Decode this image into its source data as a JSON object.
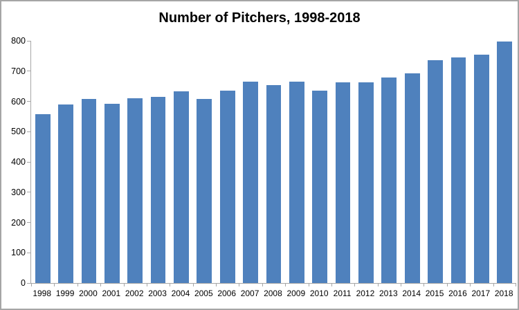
{
  "chart_data": {
    "type": "bar",
    "title": "Number of Pitchers, 1998-2018",
    "categories": [
      "1998",
      "1999",
      "2000",
      "2001",
      "2002",
      "2003",
      "2004",
      "2005",
      "2006",
      "2007",
      "2008",
      "2009",
      "2010",
      "2011",
      "2012",
      "2013",
      "2014",
      "2015",
      "2016",
      "2017",
      "2018"
    ],
    "values": [
      558,
      590,
      608,
      593,
      611,
      614,
      633,
      607,
      635,
      666,
      653,
      665,
      635,
      662,
      662,
      678,
      692,
      735,
      745,
      755,
      798
    ],
    "xlabel": "",
    "ylabel": "",
    "ylim": [
      0,
      800
    ],
    "ytick_step": 100,
    "grid": false,
    "legend_position": "none",
    "bar_color": "#4f81bd",
    "axis_color": "#a6a6a6",
    "border_color": "#a6a6a6",
    "text_color": "#000000",
    "background_color": "#ffffff"
  }
}
